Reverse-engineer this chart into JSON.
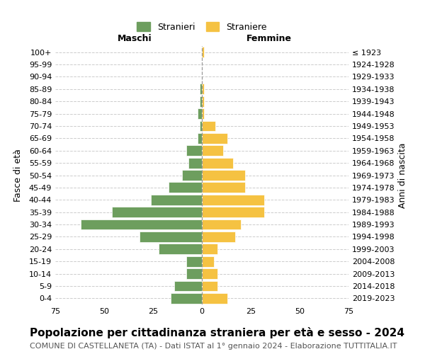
{
  "age_groups": [
    "0-4",
    "5-9",
    "10-14",
    "15-19",
    "20-24",
    "25-29",
    "30-34",
    "35-39",
    "40-44",
    "45-49",
    "50-54",
    "55-59",
    "60-64",
    "65-69",
    "70-74",
    "75-79",
    "80-84",
    "85-89",
    "90-94",
    "95-99",
    "100+"
  ],
  "birth_years": [
    "2019-2023",
    "2014-2018",
    "2009-2013",
    "2004-2008",
    "1999-2003",
    "1994-1998",
    "1989-1993",
    "1984-1988",
    "1979-1983",
    "1974-1978",
    "1969-1973",
    "1964-1968",
    "1959-1963",
    "1954-1958",
    "1949-1953",
    "1944-1948",
    "1939-1943",
    "1934-1938",
    "1929-1933",
    "1924-1928",
    "≤ 1923"
  ],
  "males": [
    16,
    14,
    8,
    8,
    22,
    32,
    62,
    46,
    26,
    17,
    10,
    7,
    8,
    2,
    1,
    2,
    1,
    1,
    0,
    0,
    0
  ],
  "females": [
    13,
    8,
    8,
    6,
    8,
    17,
    20,
    32,
    32,
    22,
    22,
    16,
    11,
    13,
    7,
    1,
    1,
    1,
    0,
    0,
    1
  ],
  "male_color": "#6d9e5e",
  "female_color": "#f5c242",
  "bar_edge_color": "white",
  "grid_color": "#cccccc",
  "background_color": "white",
  "title": "Popolazione per cittadinanza straniera per età e sesso - 2024",
  "subtitle": "COMUNE DI CASTELLANETA (TA) - Dati ISTAT al 1° gennaio 2024 - Elaborazione TUTTITALIA.IT",
  "xlabel_left": "Maschi",
  "xlabel_right": "Femmine",
  "ylabel_left": "Fasce di età",
  "ylabel_right": "Anni di nascita",
  "legend_males": "Stranieri",
  "legend_females": "Straniere",
  "xlim": 75,
  "title_fontsize": 11,
  "subtitle_fontsize": 8,
  "tick_fontsize": 8,
  "label_fontsize": 9,
  "bar_height": 0.85
}
